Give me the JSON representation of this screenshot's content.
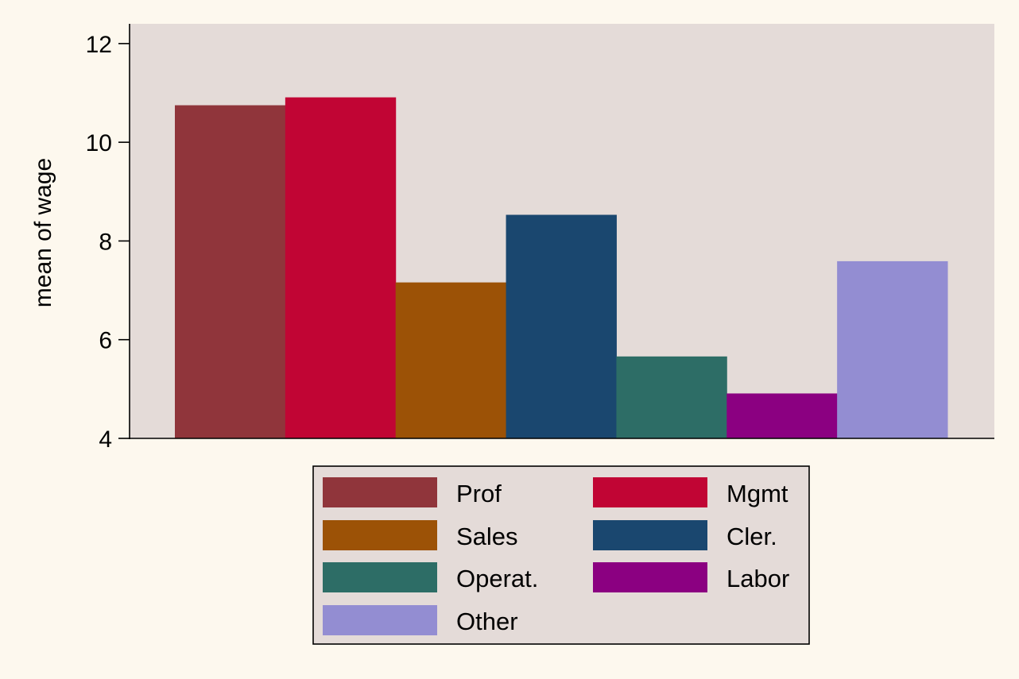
{
  "chart_data": {
    "type": "bar",
    "ylabel": "mean of wage",
    "ylim": [
      4,
      12.4
    ],
    "yticks": [
      {
        "value": 4,
        "label": "4"
      },
      {
        "value": 6,
        "label": "6"
      },
      {
        "value": 8,
        "label": "8"
      },
      {
        "value": 10,
        "label": "10"
      },
      {
        "value": 12,
        "label": "12"
      }
    ],
    "grid": false,
    "legend_position": "bottom",
    "series": [
      {
        "name": "Prof",
        "value": 10.75,
        "color": "#90353b"
      },
      {
        "name": "Mgmt",
        "value": 10.91,
        "color": "#c10534"
      },
      {
        "name": "Sales",
        "value": 7.16,
        "color": "#9c5206"
      },
      {
        "name": "Cler.",
        "value": 8.53,
        "color": "#1a476f"
      },
      {
        "name": "Operat.",
        "value": 5.66,
        "color": "#2d6d66"
      },
      {
        "name": "Labor",
        "value": 4.91,
        "color": "#8b0081"
      },
      {
        "name": "Other",
        "value": 7.59,
        "color": "#938dd2"
      }
    ],
    "legend_order": [
      "Prof",
      "Mgmt",
      "Sales",
      "Cler.",
      "Operat.",
      "Labor",
      "Other"
    ],
    "colors": {
      "page_background": "#fdf8ee",
      "plot_background": "#e4dbd8",
      "legend_background": "#e4dbd8"
    }
  }
}
